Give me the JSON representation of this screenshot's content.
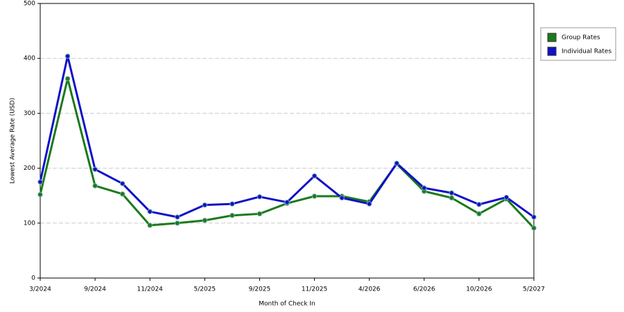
{
  "chart_data": {
    "type": "line",
    "x_label": "Month of Check In",
    "y_label": "Lowest Average Rate (USD)",
    "categories": [
      "3/2024",
      null,
      "9/2024",
      null,
      "11/2024",
      null,
      "5/2025",
      null,
      "9/2025",
      null,
      "11/2025",
      null,
      "4/2026",
      null,
      "6/2026",
      null,
      "10/2026",
      null,
      "5/2027"
    ],
    "series": [
      {
        "name": "Group Rates",
        "color": "#1a7a1a",
        "values": [
          152,
          363,
          168,
          153,
          96,
          100,
          105,
          114,
          117,
          136,
          149,
          149,
          139,
          208,
          158,
          146,
          117,
          144,
          91
        ]
      },
      {
        "name": "Individual Rates",
        "color": "#1010c8",
        "values": [
          175,
          404,
          198,
          172,
          121,
          111,
          133,
          135,
          148,
          138,
          186,
          146,
          135,
          209,
          164,
          155,
          134,
          147,
          111
        ]
      }
    ],
    "ylim": [
      0,
      500
    ],
    "yticks": [
      0,
      100,
      200,
      300,
      400,
      500
    ],
    "grid": true,
    "legend": "right"
  }
}
